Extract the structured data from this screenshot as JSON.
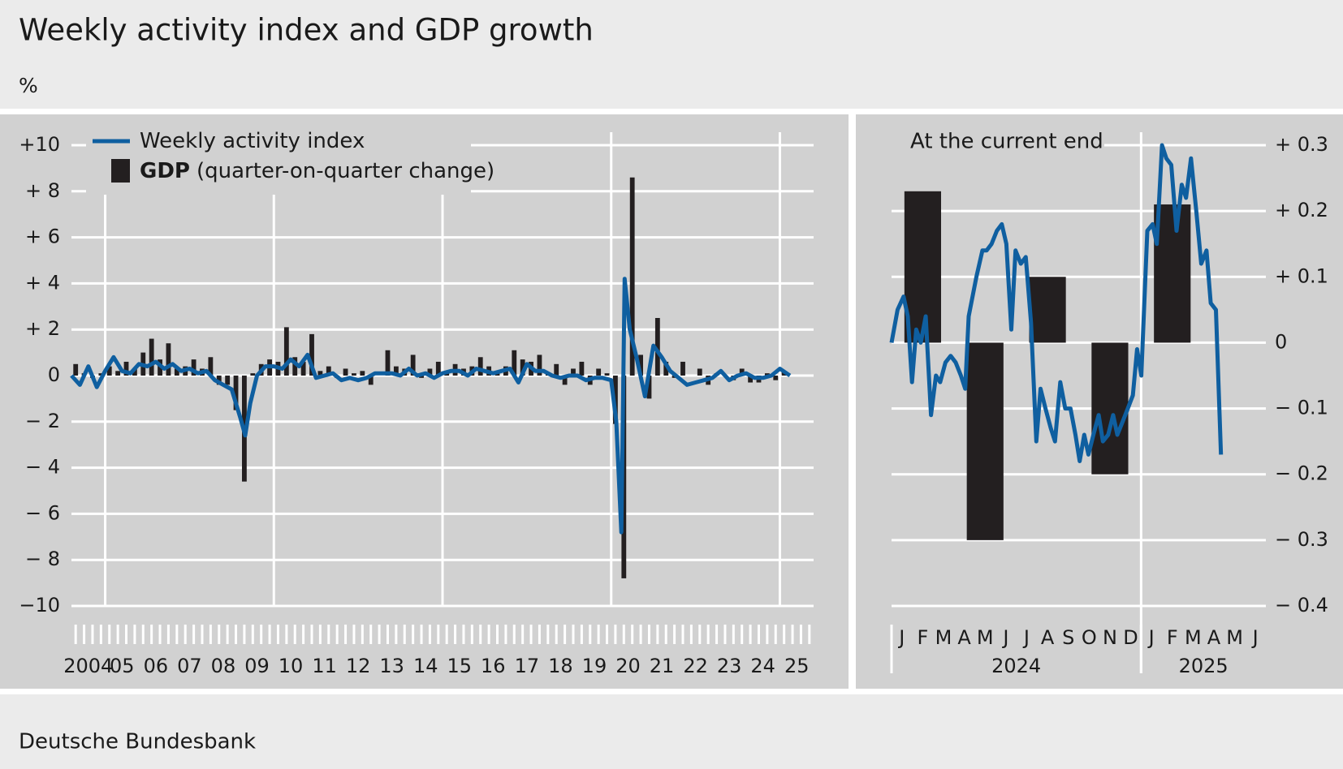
{
  "title": "Weekly activity index and GDP growth",
  "unit": "%",
  "source": "Deutsche Bundesbank",
  "chart_data": [
    {
      "type": "combo",
      "xlim": [
        2004,
        2026
      ],
      "xticks": [
        2005,
        2010,
        2015,
        2020,
        2025
      ],
      "year_labels": [
        "2004",
        "05",
        "06",
        "07",
        "08",
        "09",
        "10",
        "11",
        "12",
        "13",
        "14",
        "15",
        "16",
        "17",
        "18",
        "19",
        "20",
        "21",
        "22",
        "23",
        "24",
        "25"
      ],
      "ylim": [
        -10,
        10
      ],
      "yticks": [
        {
          "value": 10,
          "label": "+10"
        },
        {
          "value": 8,
          "label": "+ 8"
        },
        {
          "value": 6,
          "label": "+ 6"
        },
        {
          "value": 4,
          "label": "+ 4"
        },
        {
          "value": 2,
          "label": "+ 2"
        },
        0,
        {
          "value": -2,
          "label": "− 2"
        },
        {
          "value": -4,
          "label": "− 4"
        },
        {
          "value": -6,
          "label": "− 6"
        },
        {
          "value": -8,
          "label": "− 8"
        },
        {
          "value": -10,
          "label": "−10"
        }
      ],
      "grid": true,
      "series": [
        {
          "name": "Weekly activity index",
          "type": "line",
          "color": "#0f5fa0",
          "x": [
            2004.0,
            2004.25,
            2004.5,
            2004.75,
            2005.0,
            2005.25,
            2005.5,
            2005.75,
            2006.0,
            2006.25,
            2006.5,
            2006.75,
            2007.0,
            2007.25,
            2007.5,
            2007.75,
            2008.0,
            2008.25,
            2008.5,
            2008.75,
            2009.0,
            2009.15,
            2009.3,
            2009.5,
            2009.75,
            2010.0,
            2010.25,
            2010.5,
            2010.75,
            2011.0,
            2011.25,
            2011.5,
            2011.75,
            2012.0,
            2012.25,
            2012.5,
            2012.75,
            2013.0,
            2013.25,
            2013.5,
            2013.75,
            2014.0,
            2014.25,
            2014.5,
            2014.75,
            2015.0,
            2015.25,
            2015.5,
            2015.75,
            2016.0,
            2016.25,
            2016.5,
            2016.75,
            2017.0,
            2017.25,
            2017.5,
            2017.75,
            2018.0,
            2018.25,
            2018.5,
            2018.75,
            2019.0,
            2019.25,
            2019.5,
            2019.75,
            2020.0,
            2020.15,
            2020.3,
            2020.4,
            2020.55,
            2020.75,
            2021.0,
            2021.25,
            2021.5,
            2021.75,
            2022.0,
            2022.25,
            2022.5,
            2022.75,
            2023.0,
            2023.25,
            2023.5,
            2023.75,
            2024.0,
            2024.25,
            2024.5,
            2024.75,
            2025.0,
            2025.3
          ],
          "values": [
            0.0,
            -0.4,
            0.4,
            -0.5,
            0.2,
            0.8,
            0.2,
            0.1,
            0.5,
            0.4,
            0.6,
            0.3,
            0.5,
            0.2,
            0.3,
            0.1,
            0.2,
            -0.2,
            -0.4,
            -0.6,
            -1.8,
            -2.6,
            -1.2,
            0.0,
            0.4,
            0.4,
            0.3,
            0.7,
            0.4,
            0.9,
            -0.1,
            0.0,
            0.1,
            -0.2,
            -0.1,
            -0.2,
            -0.1,
            0.1,
            0.1,
            0.1,
            0.0,
            0.3,
            0.0,
            0.1,
            -0.1,
            0.1,
            0.2,
            0.2,
            0.0,
            0.3,
            0.2,
            0.1,
            0.2,
            0.3,
            -0.3,
            0.5,
            0.2,
            0.2,
            0.0,
            -0.1,
            0.0,
            0.0,
            -0.2,
            -0.1,
            -0.1,
            -0.2,
            -2.0,
            -6.8,
            4.2,
            2.0,
            0.8,
            -0.9,
            1.3,
            0.8,
            0.2,
            -0.1,
            -0.4,
            -0.3,
            -0.2,
            -0.1,
            0.2,
            -0.2,
            0.0,
            0.1,
            -0.1,
            -0.1,
            0.0,
            0.3,
            0.0
          ]
        },
        {
          "name": "GDP",
          "name_suffix": "(quarter-on-quarter change)",
          "type": "bar",
          "color": "#231f20",
          "x": [
            2004.125,
            2004.375,
            2004.625,
            2004.875,
            2005.125,
            2005.375,
            2005.625,
            2005.875,
            2006.125,
            2006.375,
            2006.625,
            2006.875,
            2007.125,
            2007.375,
            2007.625,
            2007.875,
            2008.125,
            2008.375,
            2008.625,
            2008.875,
            2009.125,
            2009.375,
            2009.625,
            2009.875,
            2010.125,
            2010.375,
            2010.625,
            2010.875,
            2011.125,
            2011.375,
            2011.625,
            2011.875,
            2012.125,
            2012.375,
            2012.625,
            2012.875,
            2013.125,
            2013.375,
            2013.625,
            2013.875,
            2014.125,
            2014.375,
            2014.625,
            2014.875,
            2015.125,
            2015.375,
            2015.625,
            2015.875,
            2016.125,
            2016.375,
            2016.625,
            2016.875,
            2017.125,
            2017.375,
            2017.625,
            2017.875,
            2018.125,
            2018.375,
            2018.625,
            2018.875,
            2019.125,
            2019.375,
            2019.625,
            2019.875,
            2020.125,
            2020.375,
            2020.625,
            2020.875,
            2021.125,
            2021.375,
            2021.625,
            2021.875,
            2022.125,
            2022.375,
            2022.625,
            2022.875,
            2023.125,
            2023.375,
            2023.625,
            2023.875,
            2024.125,
            2024.375,
            2024.625,
            2024.875,
            2025.125
          ],
          "values": [
            0.5,
            0.1,
            -0.1,
            0.1,
            0.4,
            0.2,
            0.6,
            0.3,
            1.0,
            1.6,
            0.7,
            1.4,
            0.3,
            0.4,
            0.7,
            0.3,
            0.8,
            -0.4,
            -0.4,
            -1.5,
            -4.6,
            0.1,
            0.5,
            0.7,
            0.6,
            2.1,
            0.8,
            0.6,
            1.8,
            0.2,
            0.4,
            -0.1,
            0.3,
            0.1,
            0.2,
            -0.4,
            0.0,
            1.1,
            0.4,
            0.3,
            0.9,
            -0.1,
            0.3,
            0.6,
            0.2,
            0.5,
            0.3,
            0.4,
            0.8,
            0.4,
            0.2,
            0.4,
            1.1,
            0.7,
            0.6,
            0.9,
            0.1,
            0.5,
            -0.4,
            0.3,
            0.6,
            -0.4,
            0.3,
            0.1,
            -2.1,
            -8.8,
            8.6,
            0.9,
            -1.0,
            2.5,
            0.6,
            -0.1,
            0.6,
            0.0,
            0.3,
            -0.4,
            0.1,
            0.0,
            -0.2,
            0.3,
            -0.3,
            -0.3,
            0.1,
            -0.2,
            0.2
          ]
        }
      ]
    },
    {
      "type": "combo",
      "title": "At the current end",
      "xlim": [
        2024,
        2025.5
      ],
      "xticks": [
        2025
      ],
      "months": [
        "J",
        "F",
        "M",
        "A",
        "M",
        "J",
        "J",
        "A",
        "S",
        "O",
        "N",
        "D",
        "J",
        "F",
        "M",
        "A",
        "M",
        "J"
      ],
      "years": [
        "2024",
        "2025"
      ],
      "ylim": [
        -0.4,
        0.3
      ],
      "yticks": [
        {
          "value": 0.3,
          "label": "+ 0.3"
        },
        {
          "value": 0.2,
          "label": "+ 0.2"
        },
        {
          "value": 0.1,
          "label": "+ 0.1"
        },
        0,
        {
          "value": -0.1,
          "label": "− 0.1"
        },
        {
          "value": -0.2,
          "label": "− 0.2"
        },
        {
          "value": -0.3,
          "label": "− 0.3"
        },
        {
          "value": -0.4,
          "label": "− 0.4"
        }
      ],
      "grid": true,
      "series": [
        {
          "type": "bar",
          "color": "#231f20",
          "x": [
            2024.125,
            2024.375,
            2024.625,
            2024.875,
            2025.125
          ],
          "values": [
            0.23,
            -0.3,
            0.1,
            -0.2,
            0.21
          ]
        },
        {
          "type": "line",
          "color": "#0f5fa0",
          "x": [
            2024.0,
            2024.024,
            2024.048,
            2024.065,
            2024.082,
            2024.099,
            2024.117,
            2024.137,
            2024.158,
            2024.178,
            2024.195,
            2024.216,
            2024.237,
            2024.257,
            2024.278,
            2024.295,
            2024.309,
            2024.34,
            2024.364,
            2024.381,
            2024.401,
            2024.422,
            2024.442,
            2024.46,
            2024.48,
            2024.497,
            2024.518,
            2024.538,
            2024.559,
            2024.58,
            2024.597,
            2024.617,
            2024.638,
            2024.655,
            2024.676,
            2024.696,
            2024.717,
            2024.737,
            2024.754,
            2024.772,
            2024.789,
            2024.809,
            2024.83,
            2024.847,
            2024.868,
            2024.888,
            2024.905,
            2024.926,
            2024.947,
            2024.967,
            2024.984,
            2025.001,
            2025.025,
            2025.046,
            2025.063,
            2025.084,
            2025.101,
            2025.121,
            2025.142,
            2025.163,
            2025.18,
            2025.2,
            2025.221,
            2025.241,
            2025.262,
            2025.279,
            2025.3,
            2025.32
          ],
          "values": [
            0.0,
            0.05,
            0.07,
            0.04,
            -0.06,
            0.02,
            0.0,
            0.04,
            -0.11,
            -0.05,
            -0.06,
            -0.03,
            -0.02,
            -0.03,
            -0.05,
            -0.07,
            0.04,
            0.1,
            0.14,
            0.14,
            0.15,
            0.17,
            0.18,
            0.15,
            0.02,
            0.14,
            0.12,
            0.13,
            0.03,
            -0.15,
            -0.07,
            -0.1,
            -0.13,
            -0.15,
            -0.06,
            -0.1,
            -0.1,
            -0.14,
            -0.18,
            -0.14,
            -0.17,
            -0.14,
            -0.11,
            -0.15,
            -0.14,
            -0.11,
            -0.14,
            -0.12,
            -0.1,
            -0.08,
            -0.01,
            -0.05,
            0.17,
            0.18,
            0.15,
            0.3,
            0.28,
            0.27,
            0.17,
            0.24,
            0.22,
            0.28,
            0.2,
            0.12,
            0.14,
            0.06,
            0.05,
            -0.17
          ]
        }
      ]
    }
  ]
}
